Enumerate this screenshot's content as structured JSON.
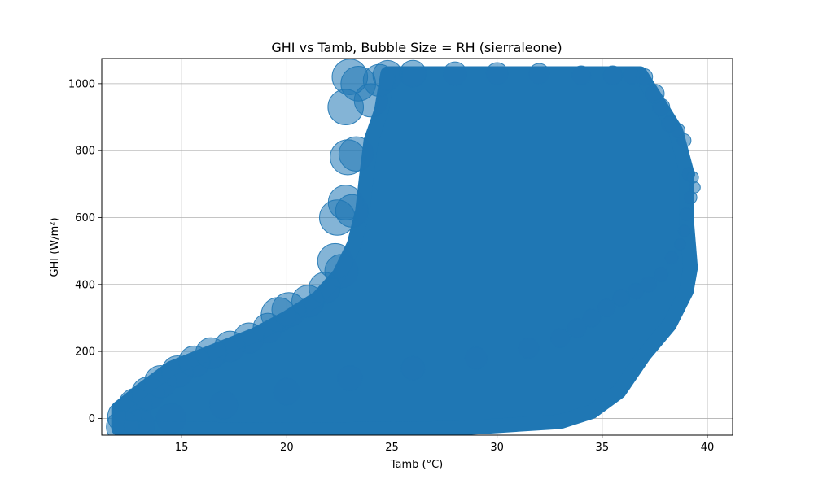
{
  "chart_data": {
    "type": "scatter",
    "title": "GHI vs Tamb, Bubble Size = RH (sierraleone)",
    "xlabel": "Tamb (°C)",
    "ylabel": "GHI (W/m²)",
    "xlim": [
      11.2,
      41.2
    ],
    "ylim": [
      -50,
      1075
    ],
    "xticks": [
      15,
      20,
      25,
      30,
      35,
      40
    ],
    "yticks": [
      0,
      200,
      400,
      600,
      800,
      1000
    ],
    "grid": true,
    "point_color": "#1f77b4",
    "point_alpha": 0.55,
    "dense_region": {
      "description_units": "Tamb (°C), GHI (W/m²)",
      "left_edge": [
        [
          12.0,
          -30
        ],
        [
          12.0,
          30
        ],
        [
          13.0,
          80
        ],
        [
          14.5,
          150
        ],
        [
          16.5,
          200
        ],
        [
          18.5,
          250
        ],
        [
          20.0,
          300
        ],
        [
          21.5,
          360
        ],
        [
          22.5,
          430
        ],
        [
          23.2,
          520
        ],
        [
          23.6,
          620
        ],
        [
          23.8,
          730
        ],
        [
          24.0,
          830
        ],
        [
          24.5,
          920
        ],
        [
          24.8,
          1030
        ]
      ],
      "right_edge": [
        [
          25.2,
          1030
        ],
        [
          36.8,
          1030
        ],
        [
          37.5,
          960
        ],
        [
          38.5,
          860
        ],
        [
          39.0,
          740
        ],
        [
          39.0,
          600
        ],
        [
          39.2,
          450
        ],
        [
          39.0,
          380
        ],
        [
          38.2,
          280
        ],
        [
          37.0,
          190
        ],
        [
          35.8,
          80
        ],
        [
          34.5,
          20
        ],
        [
          33.0,
          -10
        ],
        [
          28.0,
          -30
        ],
        [
          20.0,
          -35
        ]
      ]
    },
    "series": [
      {
        "x": [
          12.3,
          12.8,
          13.4,
          14.0,
          14.8,
          15.6,
          16.4,
          17.3,
          18.2,
          19.1,
          19.6,
          20.1,
          21.0,
          21.8,
          22.3,
          22.6,
          22.4,
          22.8,
          23.1,
          22.9,
          23.3,
          22.8,
          23.0,
          23.4,
          24.0,
          24.4,
          24.8,
          26.0,
          28.0,
          30.0,
          32.0,
          34.0,
          35.5,
          36.4,
          37.0,
          37.5,
          37.8,
          38.2,
          38.6,
          38.9,
          39.1,
          39.3,
          39.4,
          39.2,
          39.0,
          38.9,
          38.7,
          38.3,
          37.8,
          37.2,
          36.6,
          35.9,
          35.2,
          34.5,
          33.8,
          33.0,
          31.5,
          29.0,
          26.0,
          23.0,
          20.0,
          17.0,
          14.5,
          13.0,
          12.2
        ],
        "y": [
          5,
          40,
          75,
          110,
          140,
          170,
          195,
          215,
          240,
          270,
          310,
          325,
          350,
          390,
          470,
          440,
          600,
          645,
          620,
          780,
          790,
          930,
          1020,
          1000,
          950,
          1010,
          1025,
          1030,
          1030,
          1030,
          1030,
          1025,
          1025,
          1025,
          1020,
          970,
          930,
          880,
          860,
          830,
          730,
          720,
          690,
          660,
          610,
          560,
          520,
          480,
          430,
          400,
          380,
          360,
          330,
          300,
          270,
          240,
          210,
          180,
          150,
          120,
          80,
          40,
          0,
          -20,
          -25
        ],
        "rh": [
          95,
          92,
          90,
          88,
          86,
          85,
          84,
          83,
          82,
          80,
          95,
          94,
          88,
          85,
          98,
          92,
          99,
          97,
          90,
          98,
          96,
          99,
          99,
          97,
          92,
          88,
          80,
          70,
          60,
          55,
          50,
          45,
          45,
          40,
          38,
          45,
          40,
          36,
          30,
          28,
          25,
          22,
          20,
          25,
          25,
          22,
          20,
          25,
          30,
          35,
          35,
          38,
          40,
          42,
          45,
          45,
          50,
          55,
          60,
          65,
          70,
          75,
          80,
          85,
          90
        ]
      }
    ]
  }
}
